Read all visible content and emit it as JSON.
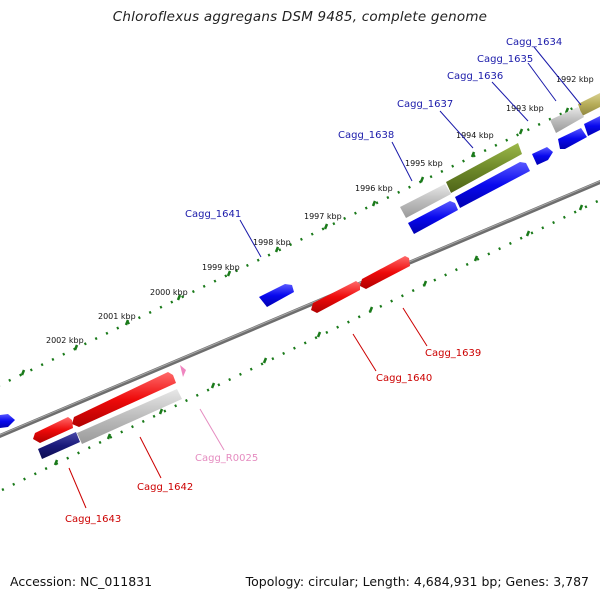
{
  "title": "Chloroflexus aggregans DSM 9485, complete genome",
  "accession": "Accession: NC_011831",
  "summary": "Topology: circular; Length: 4,684,931 bp; Genes: 3,787",
  "colors": {
    "backbone": "#6e6e6e",
    "tick": "#1a7a1a",
    "forward_gene": "#0a0aee",
    "reverse_gene": "#ee0a0a",
    "pseudo_gene": "#bdbdbd",
    "rna_gene": "#ef86c0",
    "olive_gene": "#6f8a2a",
    "dark_navy": "#1a1a7a",
    "label_blue": "#1a1aaa",
    "label_red": "#cc0000",
    "label_pink": "#e58cc0"
  },
  "kbp_labels": [
    "1992 kbp",
    "1993 kbp",
    "1994 kbp",
    "1995 kbp",
    "1996 kbp",
    "1997 kbp",
    "1998 kbp",
    "1999 kbp",
    "2000 kbp",
    "2001 kbp",
    "2002 kbp"
  ],
  "gene_labels": [
    {
      "text": "Cagg_1634",
      "color": "label_blue"
    },
    {
      "text": "Cagg_1635",
      "color": "label_blue"
    },
    {
      "text": "Cagg_1636",
      "color": "label_blue"
    },
    {
      "text": "Cagg_1637",
      "color": "label_blue"
    },
    {
      "text": "Cagg_1638",
      "color": "label_blue"
    },
    {
      "text": "Cagg_1641",
      "color": "label_blue"
    },
    {
      "text": "Cagg_1639",
      "color": "label_red"
    },
    {
      "text": "Cagg_1640",
      "color": "label_red"
    },
    {
      "text": "Cagg_R0025",
      "color": "label_pink"
    },
    {
      "text": "Cagg_1642",
      "color": "label_red"
    },
    {
      "text": "Cagg_1643",
      "color": "label_red"
    }
  ]
}
